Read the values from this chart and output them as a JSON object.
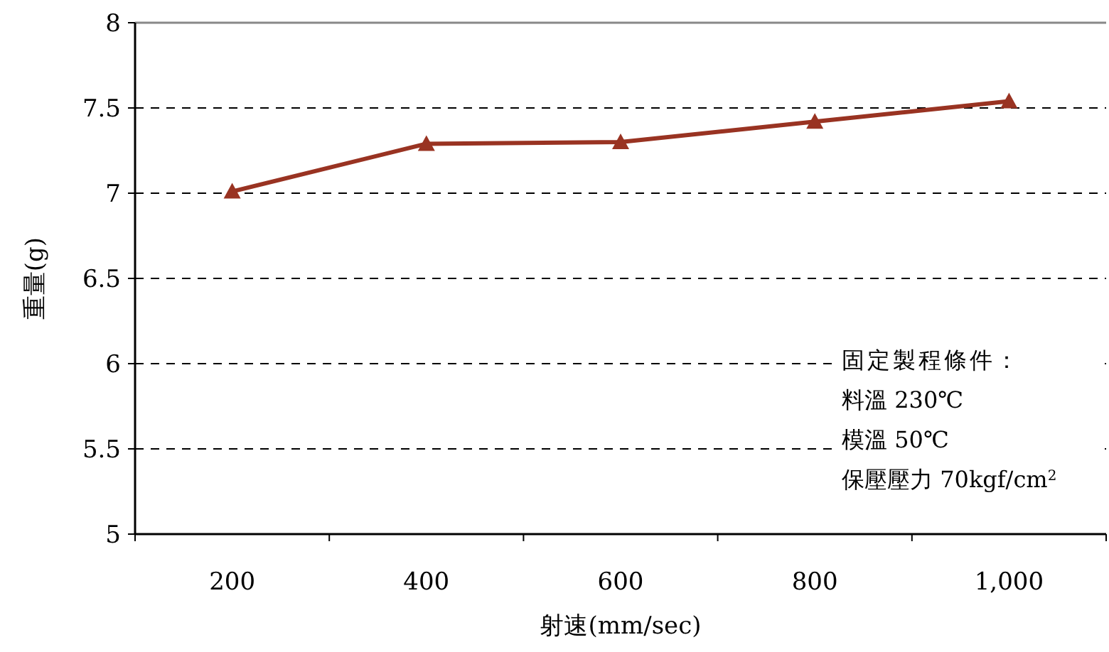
{
  "chart_data": {
    "type": "line",
    "xlabel": "射速(mm/sec)",
    "ylabel": "重量(g)",
    "categories": [
      "200",
      "400",
      "600",
      "800",
      "1,000"
    ],
    "series": [
      {
        "color": "#993322",
        "values": [
          7.01,
          7.29,
          7.3,
          7.42,
          7.54
        ]
      }
    ],
    "ylim": [
      5,
      8
    ],
    "yticks": [
      5,
      5.5,
      6,
      6.5,
      7,
      7.5,
      8
    ],
    "grid": "y",
    "marker": "triangle",
    "line_style": "solid",
    "annotations": [
      "固定製程條件：",
      "料溫 230℃",
      "模溫 50℃",
      "保壓壓力 70kgf/cm$^{2}$"
    ]
  }
}
